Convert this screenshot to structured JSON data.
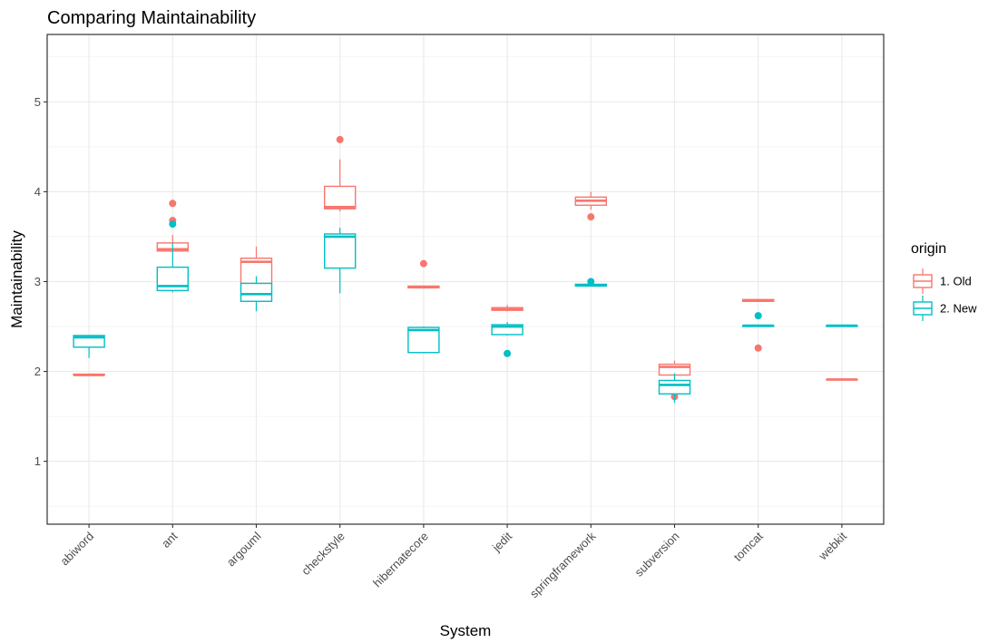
{
  "chart_data": {
    "type": "boxplot",
    "title": "Comparing Maintainability",
    "xlabel": "System",
    "ylabel": "Maintainability",
    "ylim": [
      0.3,
      5.75
    ],
    "yticks": [
      1,
      2,
      3,
      4,
      5
    ],
    "grid": true,
    "legend_position": "right",
    "legend_title": "origin",
    "categories": [
      "abiword",
      "ant",
      "argouml",
      "checkstyle",
      "hibernatecore",
      "jedit",
      "springframework",
      "subversion",
      "tomcat",
      "webkit"
    ],
    "series": [
      {
        "name": "1. Old",
        "color": "#F8766D",
        "boxes": [
          {
            "min": 1.96,
            "q1": 1.96,
            "median": 1.96,
            "q3": 1.97,
            "max": 1.97,
            "outliers": []
          },
          {
            "min": 3.33,
            "q1": 3.34,
            "median": 3.36,
            "q3": 3.43,
            "max": 3.52,
            "outliers": [
              3.87,
              3.68
            ]
          },
          {
            "min": 2.84,
            "q1": 2.98,
            "median": 3.22,
            "q3": 3.26,
            "max": 3.39,
            "outliers": []
          },
          {
            "min": 3.78,
            "q1": 3.81,
            "median": 3.83,
            "q3": 4.06,
            "max": 4.36,
            "outliers": [
              4.58
            ]
          },
          {
            "min": 2.93,
            "q1": 2.93,
            "median": 2.94,
            "q3": 2.95,
            "max": 2.95,
            "outliers": [
              3.2
            ]
          },
          {
            "min": 2.67,
            "q1": 2.68,
            "median": 2.69,
            "q3": 2.71,
            "max": 2.74,
            "outliers": []
          },
          {
            "min": 3.8,
            "q1": 3.85,
            "median": 3.9,
            "q3": 3.94,
            "max": 4.0,
            "outliers": [
              3.72
            ]
          },
          {
            "min": 1.93,
            "q1": 1.96,
            "median": 2.05,
            "q3": 2.08,
            "max": 2.12,
            "outliers": [
              1.72
            ]
          },
          {
            "min": 2.78,
            "q1": 2.78,
            "median": 2.79,
            "q3": 2.8,
            "max": 2.8,
            "outliers": [
              2.26
            ]
          },
          {
            "min": 1.91,
            "q1": 1.91,
            "median": 1.91,
            "q3": 1.91,
            "max": 1.91,
            "outliers": []
          }
        ]
      },
      {
        "name": "2. New",
        "color": "#00BFC4",
        "boxes": [
          {
            "min": 2.15,
            "q1": 2.27,
            "median": 2.38,
            "q3": 2.4,
            "max": 2.4,
            "outliers": []
          },
          {
            "min": 2.88,
            "q1": 2.9,
            "median": 2.95,
            "q3": 3.16,
            "max": 3.43,
            "outliers": [
              3.64
            ]
          },
          {
            "min": 2.67,
            "q1": 2.78,
            "median": 2.86,
            "q3": 2.98,
            "max": 3.06,
            "outliers": []
          },
          {
            "min": 2.87,
            "q1": 3.15,
            "median": 3.5,
            "q3": 3.53,
            "max": 3.6,
            "outliers": []
          },
          {
            "min": 2.21,
            "q1": 2.21,
            "median": 2.46,
            "q3": 2.49,
            "max": 2.5,
            "outliers": []
          },
          {
            "min": 2.4,
            "q1": 2.41,
            "median": 2.5,
            "q3": 2.52,
            "max": 2.55,
            "outliers": [
              2.2
            ]
          },
          {
            "min": 2.95,
            "q1": 2.95,
            "median": 2.96,
            "q3": 2.97,
            "max": 2.98,
            "outliers": [
              3.0
            ]
          },
          {
            "min": 1.65,
            "q1": 1.75,
            "median": 1.85,
            "q3": 1.9,
            "max": 1.98,
            "outliers": []
          },
          {
            "min": 2.5,
            "q1": 2.5,
            "median": 2.51,
            "q3": 2.51,
            "max": 2.52,
            "outliers": [
              2.62
            ]
          },
          {
            "min": 2.5,
            "q1": 2.5,
            "median": 2.51,
            "q3": 2.51,
            "max": 2.51,
            "outliers": []
          }
        ]
      }
    ]
  }
}
